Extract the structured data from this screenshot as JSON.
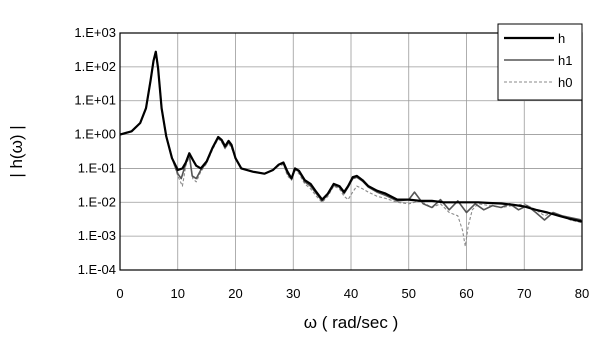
{
  "chart_data": {
    "type": "line",
    "title": "",
    "xlabel": "ω ( rad/sec )",
    "ylabel": "| h(ω) |",
    "xlim": [
      0,
      80
    ],
    "ylim": [
      0.0001,
      1000
    ],
    "y_scale": "log",
    "grid": true,
    "legend_position": "top-right",
    "x_ticks": [
      0,
      10,
      20,
      30,
      40,
      50,
      60,
      70,
      80
    ],
    "x_tick_labels": [
      "0",
      "10",
      "20",
      "30",
      "40",
      "50",
      "60",
      "70",
      "80"
    ],
    "y_ticks": [
      0.0001,
      0.001,
      0.01,
      0.1,
      1,
      10,
      100,
      1000
    ],
    "y_tick_labels": [
      "1.E-04",
      "1.E-03",
      "1.E-02",
      "1.E-01",
      "1.E+00",
      "1.E+01",
      "1.E+02",
      "1.E+03"
    ],
    "series": [
      {
        "name": "h",
        "color": "#000000",
        "x": [
          0,
          2,
          3.5,
          4.5,
          5.3,
          5.8,
          6.2,
          6.6,
          7.2,
          8,
          9,
          10,
          10.8,
          11.4,
          12,
          12.6,
          13.2,
          14,
          15,
          16,
          17,
          17.6,
          18.2,
          18.8,
          19.3,
          20,
          21,
          23,
          25,
          26.5,
          27.5,
          28.3,
          29,
          29.7,
          30.3,
          31,
          32,
          33,
          34,
          35,
          36,
          37,
          38,
          38.8,
          39.5,
          40.3,
          41,
          42,
          43,
          44.5,
          46,
          48,
          50,
          52,
          54,
          56,
          58,
          60,
          62,
          64,
          66,
          68,
          70,
          72,
          74,
          76,
          78,
          80
        ],
        "y": [
          1.0,
          1.25,
          2.2,
          6.0,
          40,
          150,
          280,
          90,
          6,
          0.9,
          0.2,
          0.09,
          0.1,
          0.15,
          0.28,
          0.18,
          0.12,
          0.1,
          0.16,
          0.4,
          0.85,
          0.7,
          0.45,
          0.65,
          0.5,
          0.2,
          0.1,
          0.08,
          0.07,
          0.09,
          0.13,
          0.15,
          0.08,
          0.05,
          0.1,
          0.085,
          0.045,
          0.035,
          0.02,
          0.012,
          0.018,
          0.035,
          0.03,
          0.02,
          0.03,
          0.055,
          0.06,
          0.045,
          0.03,
          0.022,
          0.018,
          0.012,
          0.012,
          0.011,
          0.011,
          0.01,
          0.01,
          0.01,
          0.01,
          0.0095,
          0.0092,
          0.0085,
          0.0075,
          0.006,
          0.005,
          0.004,
          0.0032,
          0.0027
        ]
      },
      {
        "name": "h1",
        "color": "#555555",
        "x": [
          0,
          2,
          3.5,
          4.5,
          5.3,
          5.8,
          6.2,
          6.6,
          7.2,
          8,
          9,
          10,
          10.6,
          11.4,
          12,
          12.5,
          13.2,
          14,
          15,
          16,
          17,
          17.6,
          18.2,
          18.8,
          19.3,
          20,
          21,
          23,
          25,
          26.5,
          27.5,
          28.3,
          29,
          29.7,
          30.3,
          31,
          32,
          33,
          34,
          35,
          36,
          37,
          38,
          38.8,
          39.5,
          40.3,
          41,
          42,
          43,
          44.5,
          46,
          48,
          50,
          51,
          52.5,
          54,
          55.5,
          57,
          58.5,
          60,
          61.5,
          63,
          64.5,
          66,
          67.5,
          69,
          70.5,
          72,
          73.5,
          75,
          76.5,
          78,
          80
        ],
        "y": [
          1.0,
          1.25,
          2.2,
          6.0,
          40,
          150,
          280,
          90,
          6,
          0.9,
          0.2,
          0.07,
          0.05,
          0.14,
          0.25,
          0.06,
          0.05,
          0.09,
          0.15,
          0.38,
          0.8,
          0.65,
          0.4,
          0.6,
          0.45,
          0.2,
          0.1,
          0.08,
          0.07,
          0.09,
          0.13,
          0.14,
          0.07,
          0.05,
          0.1,
          0.08,
          0.04,
          0.03,
          0.018,
          0.011,
          0.017,
          0.032,
          0.028,
          0.018,
          0.028,
          0.05,
          0.055,
          0.042,
          0.028,
          0.02,
          0.016,
          0.011,
          0.012,
          0.02,
          0.009,
          0.007,
          0.012,
          0.006,
          0.011,
          0.005,
          0.009,
          0.006,
          0.008,
          0.007,
          0.009,
          0.006,
          0.008,
          0.005,
          0.003,
          0.005,
          0.004,
          0.0035,
          0.003
        ]
      },
      {
        "name": "h0",
        "color": "#8a8a8a",
        "x": [
          0,
          2,
          3.5,
          4.5,
          5.3,
          5.8,
          6.2,
          6.6,
          7.2,
          8,
          9,
          10,
          10.8,
          11.4,
          12,
          12.6,
          13.2,
          14,
          15,
          16,
          17,
          17.6,
          18.2,
          18.8,
          19.3,
          20,
          21,
          23,
          25,
          26.5,
          27.5,
          28.3,
          29,
          29.7,
          30.3,
          31,
          32,
          33,
          34,
          35,
          36,
          37,
          38,
          38.8,
          39.5,
          40.3,
          41,
          42,
          43,
          44.5,
          46,
          48,
          50,
          52,
          54,
          55.5,
          57,
          58.5,
          59.3,
          59.8,
          60.3,
          61,
          62,
          64,
          66,
          68,
          70,
          72,
          73.5,
          75,
          76.5,
          78,
          80
        ],
        "y": [
          1.0,
          1.25,
          2.2,
          6.0,
          40,
          150,
          280,
          90,
          6,
          0.9,
          0.2,
          0.06,
          0.03,
          0.12,
          0.22,
          0.05,
          0.04,
          0.08,
          0.14,
          0.35,
          0.75,
          0.6,
          0.38,
          0.55,
          0.4,
          0.2,
          0.1,
          0.08,
          0.07,
          0.09,
          0.12,
          0.13,
          0.06,
          0.045,
          0.09,
          0.07,
          0.035,
          0.025,
          0.015,
          0.01,
          0.015,
          0.03,
          0.025,
          0.015,
          0.012,
          0.02,
          0.03,
          0.025,
          0.02,
          0.015,
          0.013,
          0.01,
          0.009,
          0.011,
          0.007,
          0.009,
          0.005,
          0.004,
          0.0015,
          0.0005,
          0.002,
          0.006,
          0.009,
          0.008,
          0.007,
          0.008,
          0.009,
          0.006,
          0.004,
          0.005,
          0.0038,
          0.003,
          0.0025
        ]
      }
    ]
  }
}
